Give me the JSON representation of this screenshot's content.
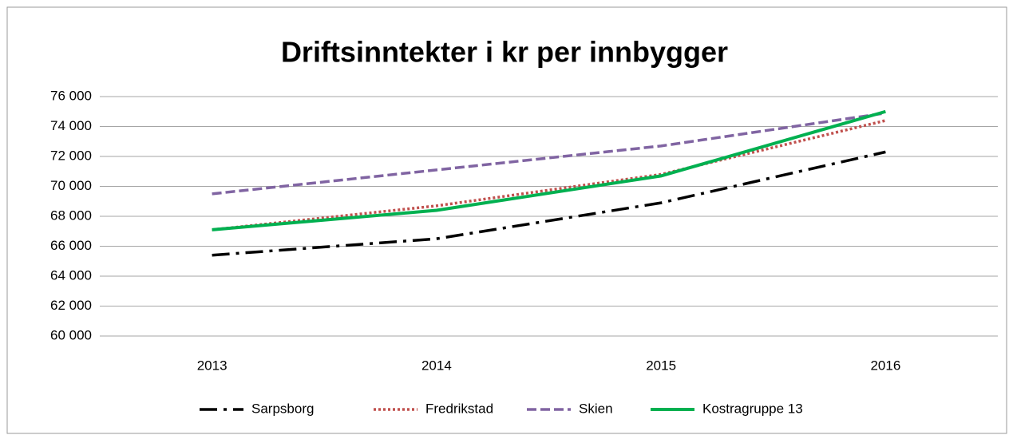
{
  "chart_data": {
    "type": "line",
    "title": "Driftsinntekter i kr per innbygger",
    "categories": [
      "2013",
      "2014",
      "2015",
      "2016"
    ],
    "series": [
      {
        "name": "Sarpsborg",
        "color": "#000000",
        "style": "dashdot",
        "values": [
          65400,
          66500,
          68900,
          72300
        ]
      },
      {
        "name": "Fredrikstad",
        "color": "#c0504d",
        "style": "dotted",
        "values": [
          67100,
          68700,
          70800,
          74400
        ]
      },
      {
        "name": "Skien",
        "color": "#8064a2",
        "style": "dashed",
        "values": [
          69500,
          71100,
          72700,
          74900
        ]
      },
      {
        "name": "Kostragruppe 13",
        "color": "#00b050",
        "style": "solid",
        "values": [
          67100,
          68400,
          70700,
          75000
        ]
      }
    ],
    "ylim": [
      60000,
      76000
    ],
    "yticks": [
      {
        "value": 60000,
        "label": "60 000"
      },
      {
        "value": 62000,
        "label": "62 000"
      },
      {
        "value": 64000,
        "label": "64 000"
      },
      {
        "value": 66000,
        "label": "66 000"
      },
      {
        "value": 68000,
        "label": "68 000"
      },
      {
        "value": 70000,
        "label": "70 000"
      },
      {
        "value": 72000,
        "label": "72 000"
      },
      {
        "value": 74000,
        "label": "74 000"
      },
      {
        "value": 76000,
        "label": "76 000"
      }
    ],
    "grid": true,
    "legend": "bottom"
  }
}
